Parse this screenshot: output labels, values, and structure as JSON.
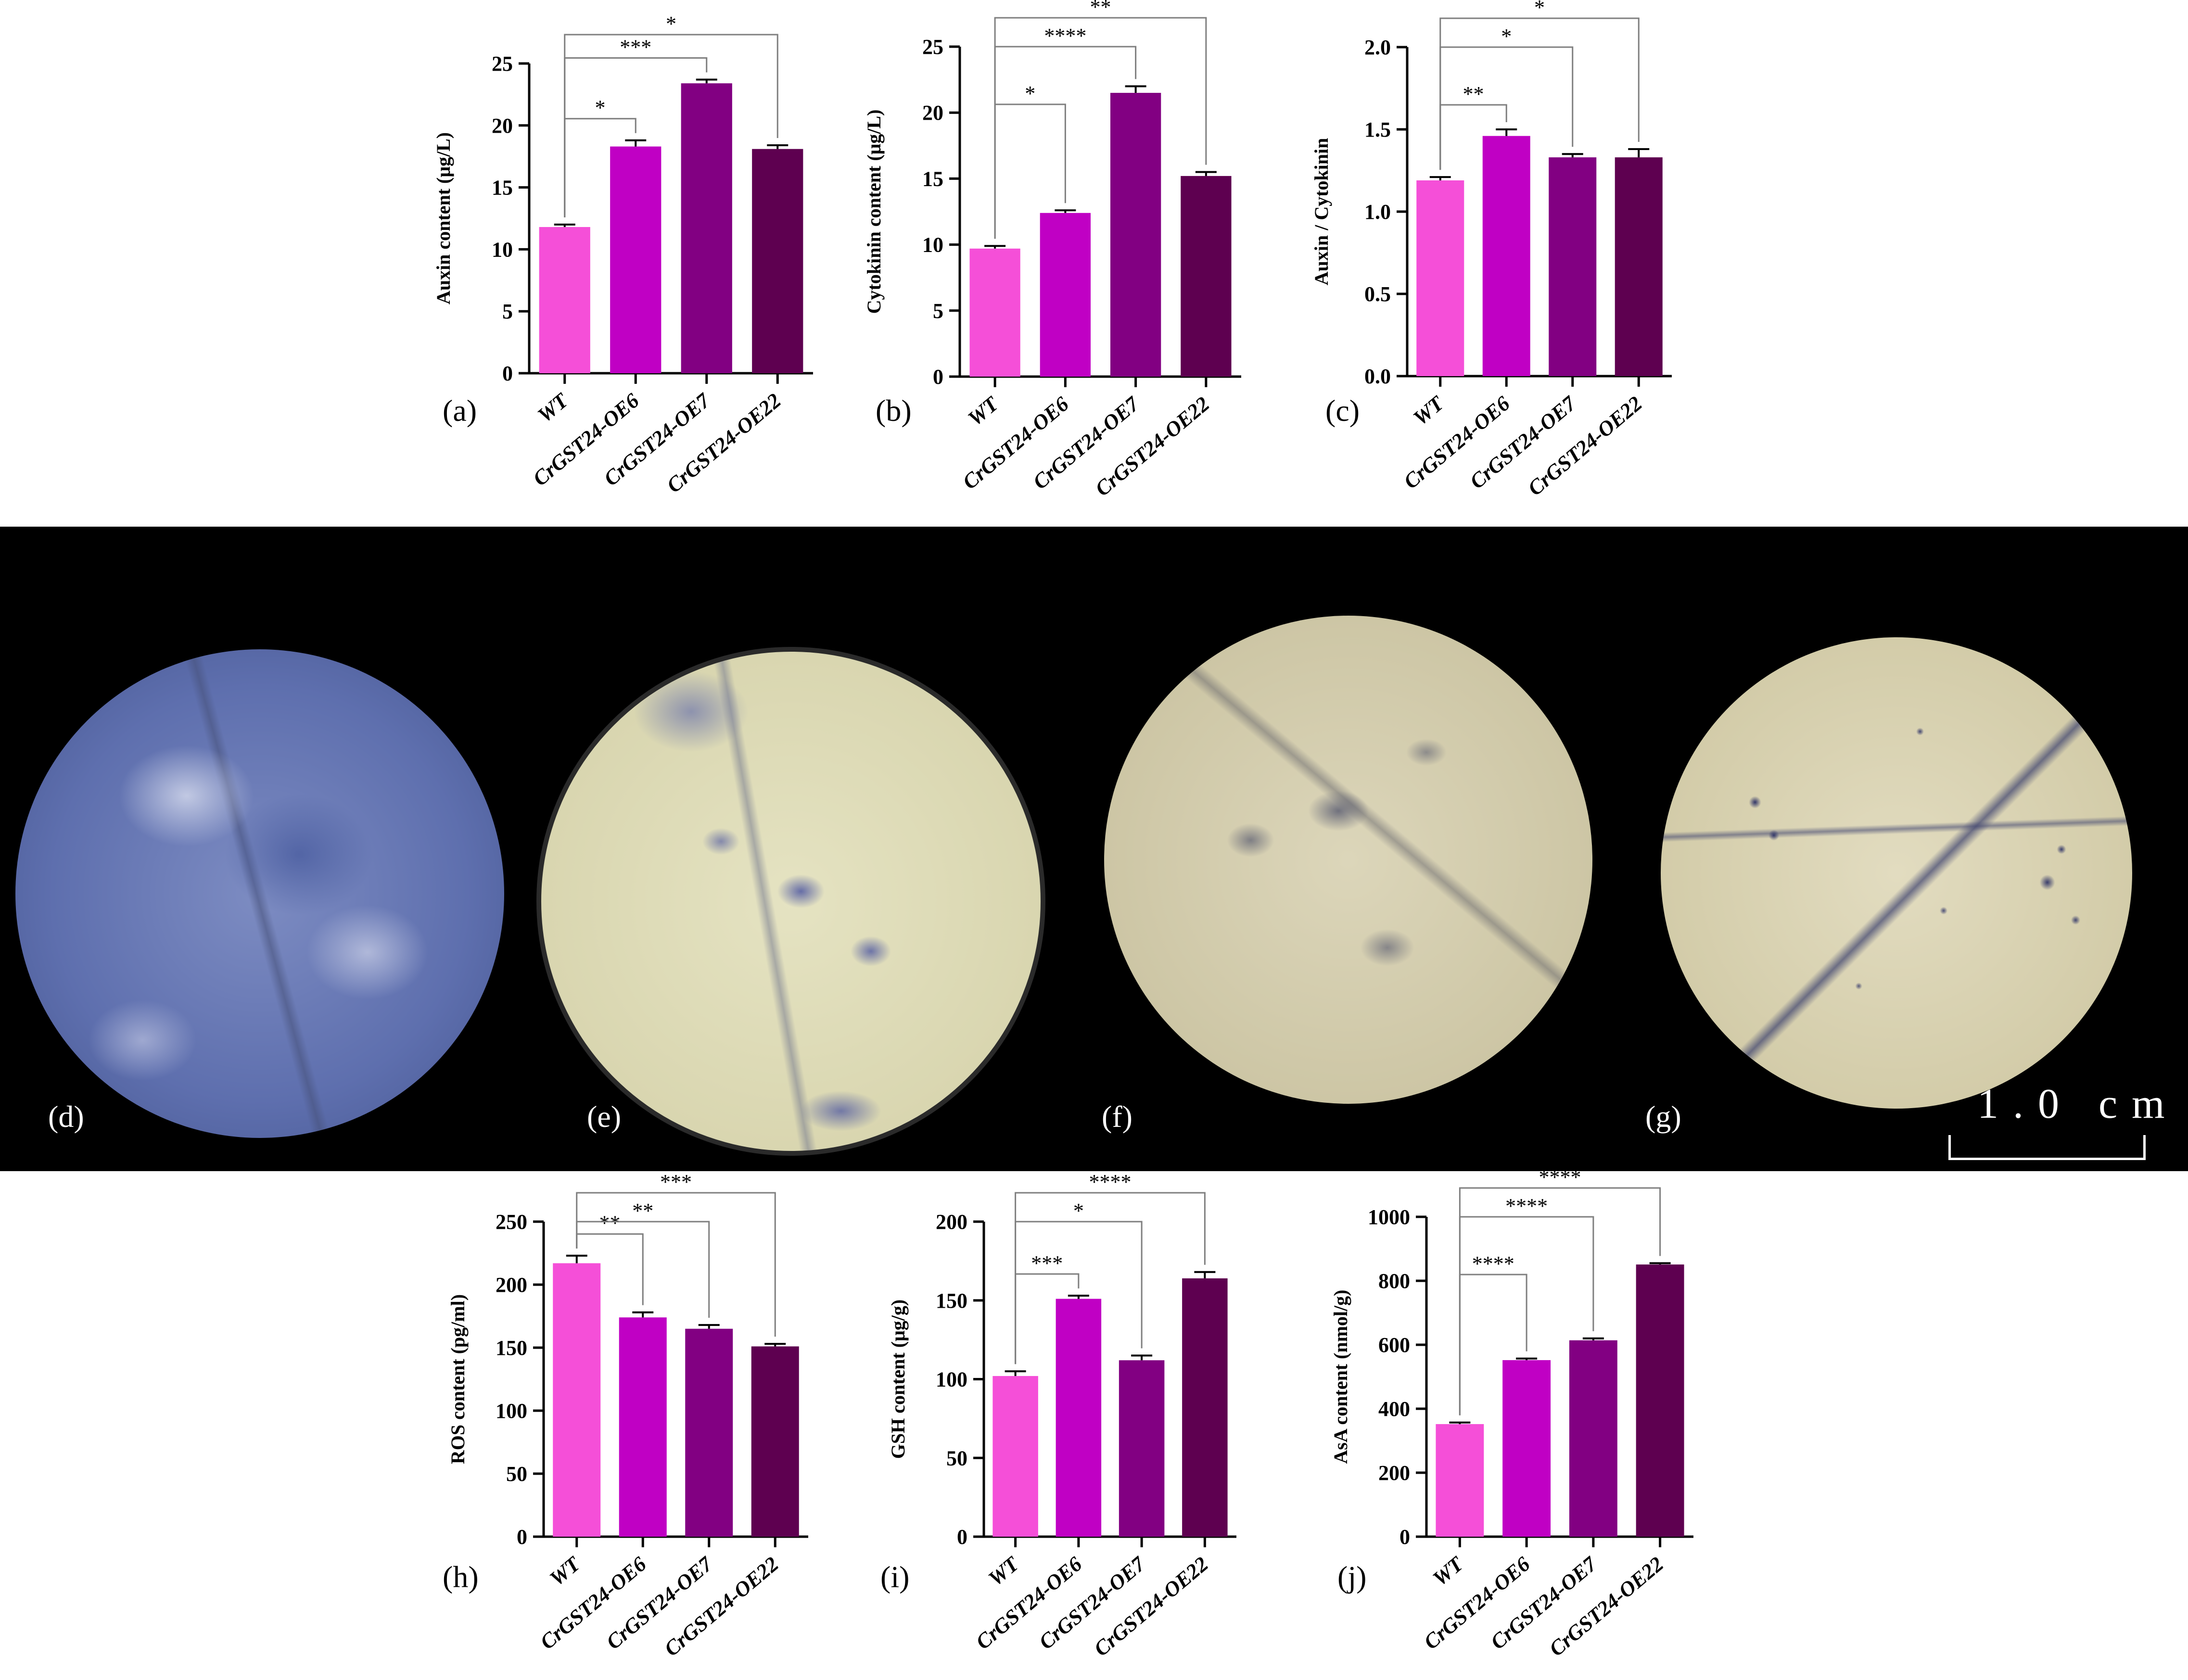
{
  "colors": {
    "wt": "#f54fd8",
    "oe6": "#c000c4",
    "oe7": "#820082",
    "oe22": "#5e0050",
    "axis": "#000000",
    "bracket": "#7f7f7f",
    "photo_background": "#000000"
  },
  "categories": [
    "WT",
    "CrGST24-OE6",
    "CrGST24-OE7",
    "CrGST24-OE22"
  ],
  "chart_data": [
    {
      "panel": "(a)",
      "type": "bar",
      "ylabel": "Auxin content (μg/L)",
      "ylim": [
        0,
        25
      ],
      "yticks": [
        0,
        5,
        10,
        15,
        20,
        25
      ],
      "categories": [
        "WT",
        "CrGST24-OE6",
        "CrGST24-OE7",
        "CrGST24-OE22"
      ],
      "values": [
        11.8,
        18.3,
        23.4,
        18.1
      ],
      "errors": [
        0.2,
        0.5,
        0.3,
        0.3
      ],
      "significance": [
        {
          "from": 0,
          "to": 1,
          "label": "*"
        },
        {
          "from": 0,
          "to": 2,
          "label": "***"
        },
        {
          "from": 0,
          "to": 3,
          "label": "*"
        }
      ]
    },
    {
      "panel": "(b)",
      "type": "bar",
      "ylabel": "Cytokinin content (μg/L)",
      "ylim": [
        0,
        25
      ],
      "yticks": [
        0,
        5,
        10,
        15,
        20,
        25
      ],
      "categories": [
        "WT",
        "CrGST24-OE6",
        "CrGST24-OE7",
        "CrGST24-OE22"
      ],
      "values": [
        9.7,
        12.4,
        21.5,
        15.2
      ],
      "errors": [
        0.2,
        0.2,
        0.5,
        0.3
      ],
      "significance": [
        {
          "from": 0,
          "to": 1,
          "label": "*"
        },
        {
          "from": 0,
          "to": 2,
          "label": "****"
        },
        {
          "from": 0,
          "to": 3,
          "label": "**"
        }
      ]
    },
    {
      "panel": "(c)",
      "type": "bar",
      "ylabel": "Auxin / Cytokinin",
      "ylim": [
        0,
        2.0
      ],
      "yticks": [
        "0.0",
        "0.5",
        "1.0",
        "1.5",
        "2.0"
      ],
      "categories": [
        "WT",
        "CrGST24-OE6",
        "CrGST24-OE7",
        "CrGST24-OE22"
      ],
      "values": [
        1.19,
        1.46,
        1.33,
        1.33
      ],
      "errors": [
        0.02,
        0.04,
        0.02,
        0.05
      ],
      "significance": [
        {
          "from": 0,
          "to": 1,
          "label": "**"
        },
        {
          "from": 0,
          "to": 2,
          "label": "*"
        },
        {
          "from": 0,
          "to": 3,
          "label": "*"
        }
      ]
    },
    {
      "panel": "(h)",
      "type": "bar",
      "ylabel": "ROS content (pg/ml)",
      "ylim": [
        0,
        250
      ],
      "yticks": [
        0,
        50,
        100,
        150,
        200,
        250
      ],
      "categories": [
        "WT",
        "CrGST24-OE6",
        "CrGST24-OE7",
        "CrGST24-OE22"
      ],
      "values": [
        217,
        174,
        165,
        151
      ],
      "errors": [
        6,
        4,
        3,
        2
      ],
      "significance": [
        {
          "from": 0,
          "to": 1,
          "label": "**"
        },
        {
          "from": 0,
          "to": 2,
          "label": "**"
        },
        {
          "from": 0,
          "to": 3,
          "label": "***"
        }
      ]
    },
    {
      "panel": "(i)",
      "type": "bar",
      "ylabel": "GSH content (μg/g)",
      "ylim": [
        0,
        200
      ],
      "yticks": [
        0,
        50,
        100,
        150,
        200
      ],
      "categories": [
        "WT",
        "CrGST24-OE6",
        "CrGST24-OE7",
        "CrGST24-OE22"
      ],
      "values": [
        102,
        151,
        112,
        164
      ],
      "errors": [
        3,
        2,
        3,
        4
      ],
      "significance": [
        {
          "from": 0,
          "to": 1,
          "label": "***"
        },
        {
          "from": 0,
          "to": 2,
          "label": "*"
        },
        {
          "from": 0,
          "to": 3,
          "label": "****"
        }
      ]
    },
    {
      "panel": "(j)",
      "type": "bar",
      "ylabel": "AsA content (nmol/g)",
      "ylim": [
        0,
        1000
      ],
      "yticks": [
        0,
        200,
        400,
        600,
        800,
        1000
      ],
      "categories": [
        "WT",
        "CrGST24-OE6",
        "CrGST24-OE7",
        "CrGST24-OE22"
      ],
      "values": [
        352,
        552,
        614,
        851
      ],
      "errors": [
        5,
        5,
        6,
        4
      ],
      "significance": [
        {
          "from": 0,
          "to": 1,
          "label": "****"
        },
        {
          "from": 0,
          "to": 2,
          "label": "****"
        },
        {
          "from": 0,
          "to": 3,
          "label": "****"
        }
      ]
    }
  ],
  "photos": {
    "panels": [
      {
        "label": "(d)"
      },
      {
        "label": "(e)"
      },
      {
        "label": "(f)"
      },
      {
        "label": "(g)"
      }
    ],
    "scale_bar_label": "1.0 cm"
  }
}
